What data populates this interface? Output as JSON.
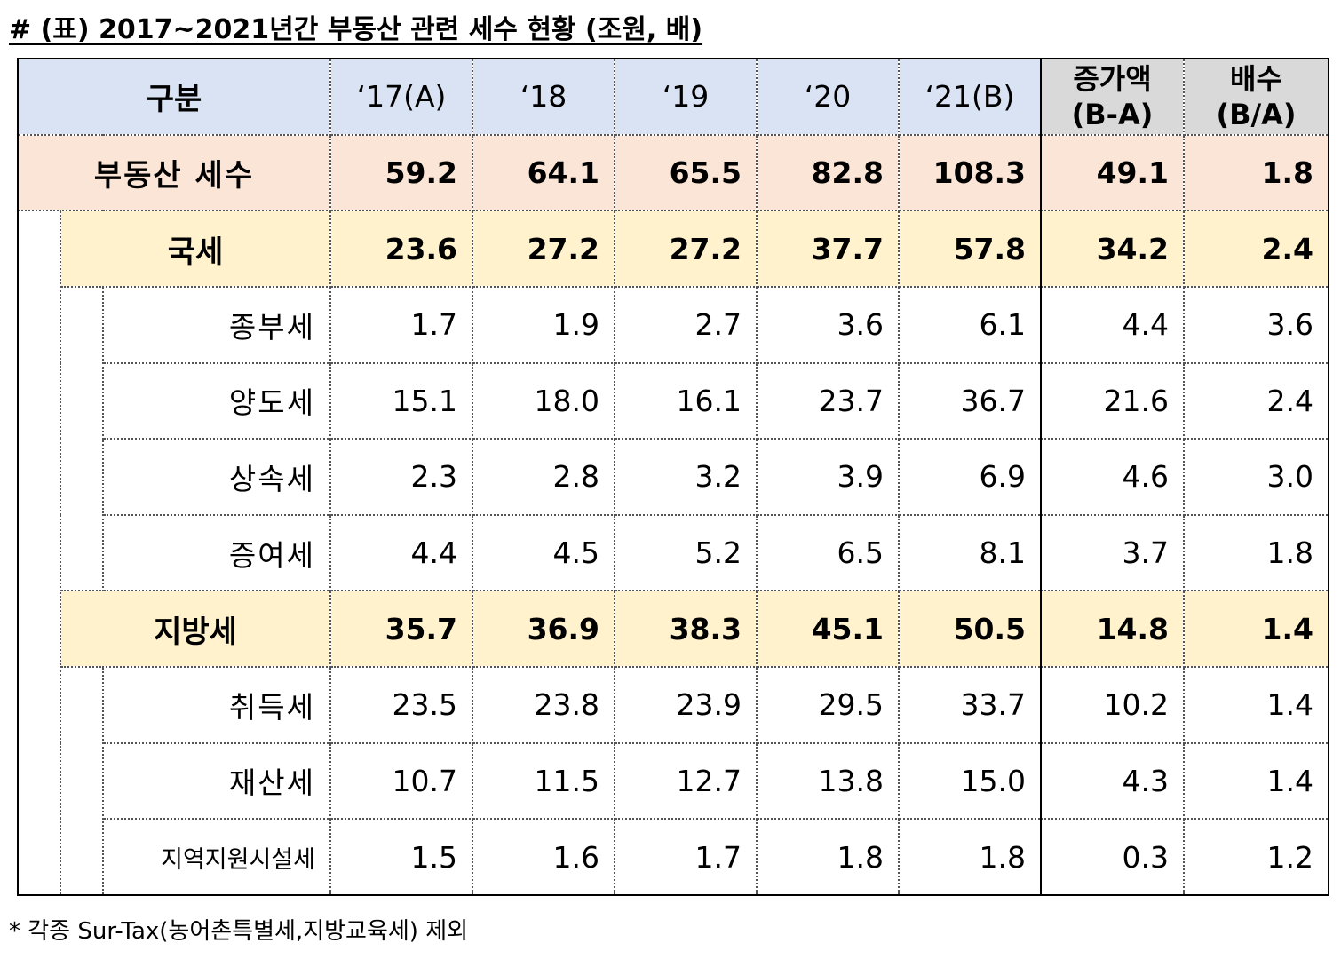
{
  "title": "# (표) 2017~2021년간 부동산 관련 세수 현황 (조원, 배)",
  "header": {
    "category": "구분",
    "years": [
      "‘17(A)",
      "‘18",
      "‘19",
      "‘20",
      "‘21(B)"
    ],
    "increase_line1": "증가액",
    "increase_line2": "(B-A)",
    "ratio_line1": "배수",
    "ratio_line2": "(B/A)"
  },
  "total": {
    "label": "부동산 세수",
    "values": [
      "59.2",
      "64.1",
      "65.5",
      "82.8",
      "108.3",
      "49.1",
      "1.8"
    ]
  },
  "national": {
    "label": "국세",
    "values": [
      "23.6",
      "27.2",
      "27.2",
      "37.7",
      "57.8",
      "34.2",
      "2.4"
    ],
    "items": [
      {
        "label": "종부세",
        "values": [
          "1.7",
          "1.9",
          "2.7",
          "3.6",
          "6.1",
          "4.4",
          "3.6"
        ]
      },
      {
        "label": "양도세",
        "values": [
          "15.1",
          "18.0",
          "16.1",
          "23.7",
          "36.7",
          "21.6",
          "2.4"
        ]
      },
      {
        "label": "상속세",
        "values": [
          "2.3",
          "2.8",
          "3.2",
          "3.9",
          "6.9",
          "4.6",
          "3.0"
        ]
      },
      {
        "label": "증여세",
        "values": [
          "4.4",
          "4.5",
          "5.2",
          "6.5",
          "8.1",
          "3.7",
          "1.8"
        ]
      }
    ]
  },
  "local": {
    "label": "지방세",
    "values": [
      "35.7",
      "36.9",
      "38.3",
      "45.1",
      "50.5",
      "14.8",
      "1.4"
    ],
    "items": [
      {
        "label": "취득세",
        "values": [
          "23.5",
          "23.8",
          "23.9",
          "29.5",
          "33.7",
          "10.2",
          "1.4"
        ]
      },
      {
        "label": "재산세",
        "values": [
          "10.7",
          "11.5",
          "12.7",
          "13.8",
          "15.0",
          "4.3",
          "1.4"
        ]
      },
      {
        "label": "지역지원시설세",
        "values": [
          "1.5",
          "1.6",
          "1.7",
          "1.8",
          "1.8",
          "0.3",
          "1.2"
        ]
      }
    ]
  },
  "footnote": "* 각종 Sur-Tax(농어촌특별세,지방교육세) 제외",
  "colors": {
    "header_bg": "#dae3f3",
    "header_grey_bg": "#d9d9d9",
    "total_bg": "#fbe5d6",
    "subtotal_bg": "#fff2cc"
  }
}
